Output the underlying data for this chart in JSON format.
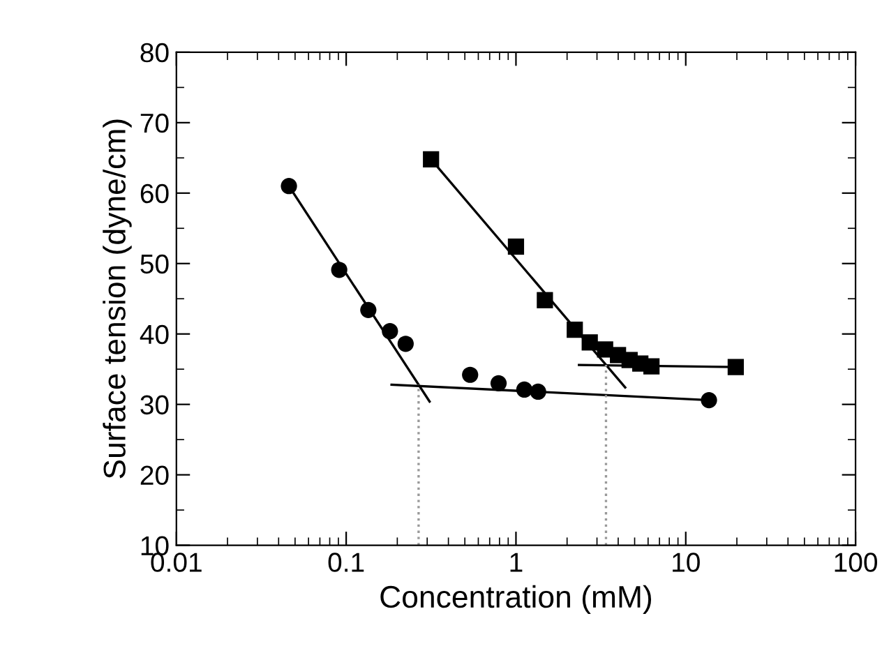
{
  "chart_data": {
    "type": "scatter",
    "xlabel": "Concentration (mM)",
    "ylabel": "Surface tension (dyne/cm)",
    "log": "x",
    "xlim": [
      0.01,
      100
    ],
    "xticks": [
      0.01,
      0.1,
      1,
      10,
      100
    ],
    "ylim": [
      10,
      80
    ],
    "yticks": [
      10,
      20,
      30,
      40,
      50,
      60,
      70,
      80
    ],
    "grid": false,
    "legend": false,
    "series": [
      {
        "marker": "circle",
        "color": "#000000",
        "x": [
          0.046,
          0.091,
          0.135,
          0.181,
          0.224,
          0.537,
          0.79,
          1.12,
          1.35,
          13.7
        ],
        "values": [
          61.0,
          49.1,
          43.4,
          40.4,
          38.6,
          34.2,
          33.0,
          32.1,
          31.8,
          30.6
        ]
      },
      {
        "marker": "square",
        "color": "#000000",
        "x": [
          0.316,
          1.0,
          1.48,
          2.22,
          2.72,
          3.35,
          3.99,
          4.67,
          5.4,
          6.28,
          19.7
        ],
        "values": [
          64.8,
          52.4,
          44.8,
          40.6,
          38.8,
          37.8,
          37.0,
          36.3,
          35.8,
          35.4,
          35.3
        ]
      },
      {
        "type": "line",
        "line_style": "solid",
        "color": "#000000",
        "x": [
          0.046,
          0.31
        ],
        "values": [
          61.0,
          30.4
        ]
      },
      {
        "type": "line",
        "line_style": "solid",
        "color": "#000000",
        "x": [
          0.185,
          13.7
        ],
        "values": [
          32.8,
          30.6
        ]
      },
      {
        "type": "line",
        "line_style": "solid",
        "color": "#000000",
        "x": [
          0.316,
          4.4
        ],
        "values": [
          64.8,
          32.4
        ]
      },
      {
        "type": "line",
        "line_style": "solid",
        "color": "#000000",
        "x": [
          2.35,
          19.7
        ],
        "values": [
          35.6,
          35.3
        ]
      },
      {
        "type": "line",
        "line_style": "dotted",
        "color": "#999999",
        "x": [
          0.267,
          0.267
        ],
        "values": [
          10,
          32.8
        ]
      },
      {
        "type": "line",
        "line_style": "dotted",
        "color": "#999999",
        "x": [
          3.39,
          3.39
        ],
        "values": [
          10,
          35.6
        ]
      }
    ]
  }
}
